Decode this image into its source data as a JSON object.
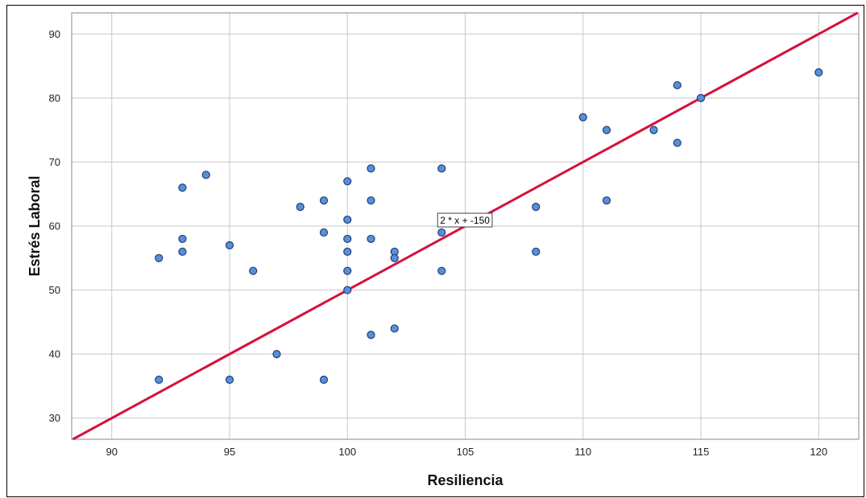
{
  "chart_data": {
    "type": "scatter",
    "xlabel": "Resiliencia",
    "ylabel": "Estrés Laboral",
    "xlim": [
      88.3,
      121.7
    ],
    "ylim": [
      26.7,
      93.3
    ],
    "xticks": [
      90,
      95,
      100,
      105,
      110,
      115,
      120
    ],
    "yticks": [
      30,
      40,
      50,
      60,
      70,
      80,
      90
    ],
    "grid": true,
    "legend": "none",
    "points": [
      {
        "x": 92,
        "y": 55
      },
      {
        "x": 92,
        "y": 36
      },
      {
        "x": 93,
        "y": 66
      },
      {
        "x": 93,
        "y": 58
      },
      {
        "x": 93,
        "y": 56
      },
      {
        "x": 94,
        "y": 68
      },
      {
        "x": 95,
        "y": 57
      },
      {
        "x": 95,
        "y": 36
      },
      {
        "x": 96,
        "y": 53
      },
      {
        "x": 97,
        "y": 40
      },
      {
        "x": 98,
        "y": 63
      },
      {
        "x": 99,
        "y": 64
      },
      {
        "x": 99,
        "y": 59
      },
      {
        "x": 99,
        "y": 36
      },
      {
        "x": 100,
        "y": 67
      },
      {
        "x": 100,
        "y": 61
      },
      {
        "x": 100,
        "y": 58
      },
      {
        "x": 100,
        "y": 56
      },
      {
        "x": 100,
        "y": 53
      },
      {
        "x": 100,
        "y": 50
      },
      {
        "x": 101,
        "y": 69
      },
      {
        "x": 101,
        "y": 64
      },
      {
        "x": 101,
        "y": 58
      },
      {
        "x": 101,
        "y": 43
      },
      {
        "x": 102,
        "y": 56
      },
      {
        "x": 102,
        "y": 55
      },
      {
        "x": 102,
        "y": 44
      },
      {
        "x": 104,
        "y": 69
      },
      {
        "x": 104,
        "y": 59
      },
      {
        "x": 104,
        "y": 53
      },
      {
        "x": 108,
        "y": 63
      },
      {
        "x": 108,
        "y": 56
      },
      {
        "x": 110,
        "y": 77
      },
      {
        "x": 111,
        "y": 75
      },
      {
        "x": 111,
        "y": 64
      },
      {
        "x": 113,
        "y": 75
      },
      {
        "x": 114,
        "y": 82
      },
      {
        "x": 114,
        "y": 73
      },
      {
        "x": 115,
        "y": 80
      },
      {
        "x": 120,
        "y": 84
      }
    ],
    "fit_line": {
      "slope": 2,
      "intercept": -150,
      "label": "2 * x + -150",
      "label_x": 104,
      "label_y": 61
    },
    "colors": {
      "point_fill": "#5b8ed8",
      "point_stroke": "#1f3f7a",
      "line": "#d6103c",
      "grid": "#c8c8c8"
    }
  }
}
